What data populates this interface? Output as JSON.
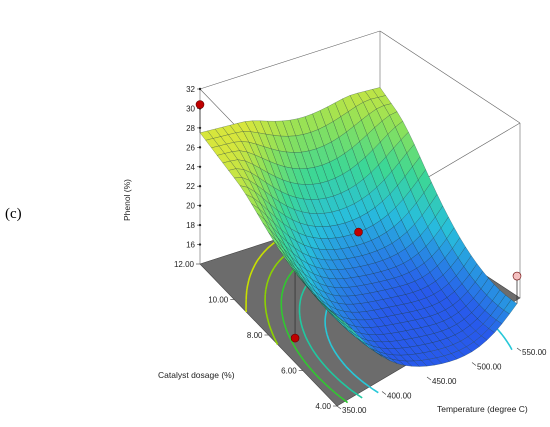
{
  "panel_label": "(c)",
  "chart_data": {
    "type": "surface3d",
    "title": "",
    "zlabel": "Phenol (%)",
    "xlabel": "Temperature (degree C)",
    "ylabel": "Catalyst dosage (%)",
    "x_ticks": [
      "350.00",
      "400.00",
      "450.00",
      "500.00",
      "550.00"
    ],
    "y_ticks": [
      "4.00",
      "6.00",
      "8.00",
      "10.00",
      "12.00"
    ],
    "z_ticks": [
      "16",
      "18",
      "20",
      "22",
      "24",
      "26",
      "28",
      "30",
      "32"
    ],
    "xlim": [
      350,
      550
    ],
    "ylim": [
      4,
      12
    ],
    "zlim": [
      14,
      32
    ],
    "grid": false,
    "surface_corners": [
      {
        "temperature": 350,
        "catalyst": 12,
        "phenol": 27.5
      },
      {
        "temperature": 550,
        "catalyst": 12,
        "phenol": 26.2
      },
      {
        "temperature": 550,
        "catalyst": 4,
        "phenol": 20.8
      },
      {
        "temperature": 350,
        "catalyst": 4,
        "phenol": 23.5
      }
    ],
    "surface_minimum": {
      "temperature": 460,
      "catalyst": 6.5,
      "phenol": 16.3
    },
    "design_points": [
      {
        "temperature": 350,
        "catalyst": 12,
        "phenol": 30.4,
        "color": "#c00000"
      },
      {
        "temperature": 450,
        "catalyst": 8,
        "phenol": 21.6,
        "color": "#c00000"
      },
      {
        "temperature": 370,
        "catalyst": 7.5,
        "phenol": 14,
        "color": "#c00000"
      },
      {
        "temperature": 550,
        "catalyst": 4,
        "phenol": 21.4,
        "color": "#f4c0c0"
      }
    ],
    "contour_colors": [
      "#c8e000",
      "#8cd200",
      "#30c830",
      "#20c8a0",
      "#28c8d8"
    ],
    "floor_color": "#6c6c6c"
  }
}
